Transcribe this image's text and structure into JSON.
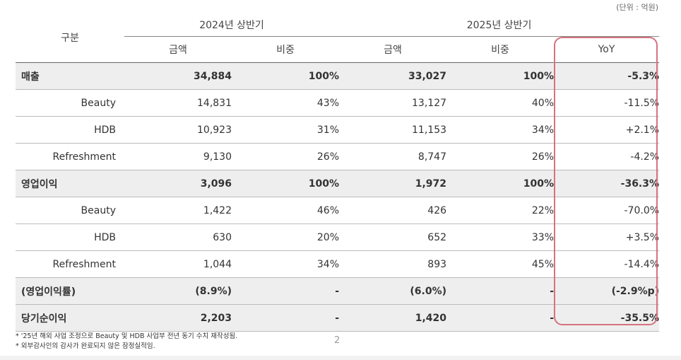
{
  "unit_note": "(단위 : 억원)",
  "header": {
    "category": "구분",
    "period_2024": "2024년 상반기",
    "period_2025": "2025년 상반기",
    "amount": "금액",
    "share": "비중",
    "yoy": "YoY"
  },
  "rows": [
    {
      "label": "매출",
      "a24": "34,884",
      "s24": "100%",
      "a25": "33,027",
      "s25": "100%",
      "yoy": "-5.3%"
    },
    {
      "label": "Beauty",
      "a24": "14,831",
      "s24": "43%",
      "a25": "13,127",
      "s25": "40%",
      "yoy": "-11.5%"
    },
    {
      "label": "HDB",
      "a24": "10,923",
      "s24": "31%",
      "a25": "11,153",
      "s25": "34%",
      "yoy": "+2.1%"
    },
    {
      "label": "Refreshment",
      "a24": "9,130",
      "s24": "26%",
      "a25": "8,747",
      "s25": "26%",
      "yoy": "-4.2%"
    },
    {
      "label": "영업이익",
      "a24": "3,096",
      "s24": "100%",
      "a25": "1,972",
      "s25": "100%",
      "yoy": "-36.3%"
    },
    {
      "label": "Beauty",
      "a24": "1,422",
      "s24": "46%",
      "a25": "426",
      "s25": "22%",
      "yoy": "-70.0%"
    },
    {
      "label": "HDB",
      "a24": "630",
      "s24": "20%",
      "a25": "652",
      "s25": "33%",
      "yoy": "+3.5%"
    },
    {
      "label": "Refreshment",
      "a24": "1,044",
      "s24": "34%",
      "a25": "893",
      "s25": "45%",
      "yoy": "-14.4%"
    },
    {
      "label": "(영업이익률)",
      "a24": "(8.9%)",
      "s24": "-",
      "a25": "(6.0%)",
      "s25": "-",
      "yoy": "(-2.9%p)"
    },
    {
      "label": "당기순이익",
      "a24": "2,203",
      "s24": "-",
      "a25": "1,420",
      "s25": "-",
      "yoy": "-35.5%"
    }
  ],
  "footnotes": [
    "* '25년 해외 사업 조정으로 Beauty 및 HDB 사업부 전년 동기 수치 재작성됨.",
    "* 외부감사인의 감사가 완료되지 않은 잠정실적임."
  ],
  "page_number": "2",
  "colors": {
    "highlight_border": "#d4727f",
    "main_row_bg": "#eeeeee"
  }
}
